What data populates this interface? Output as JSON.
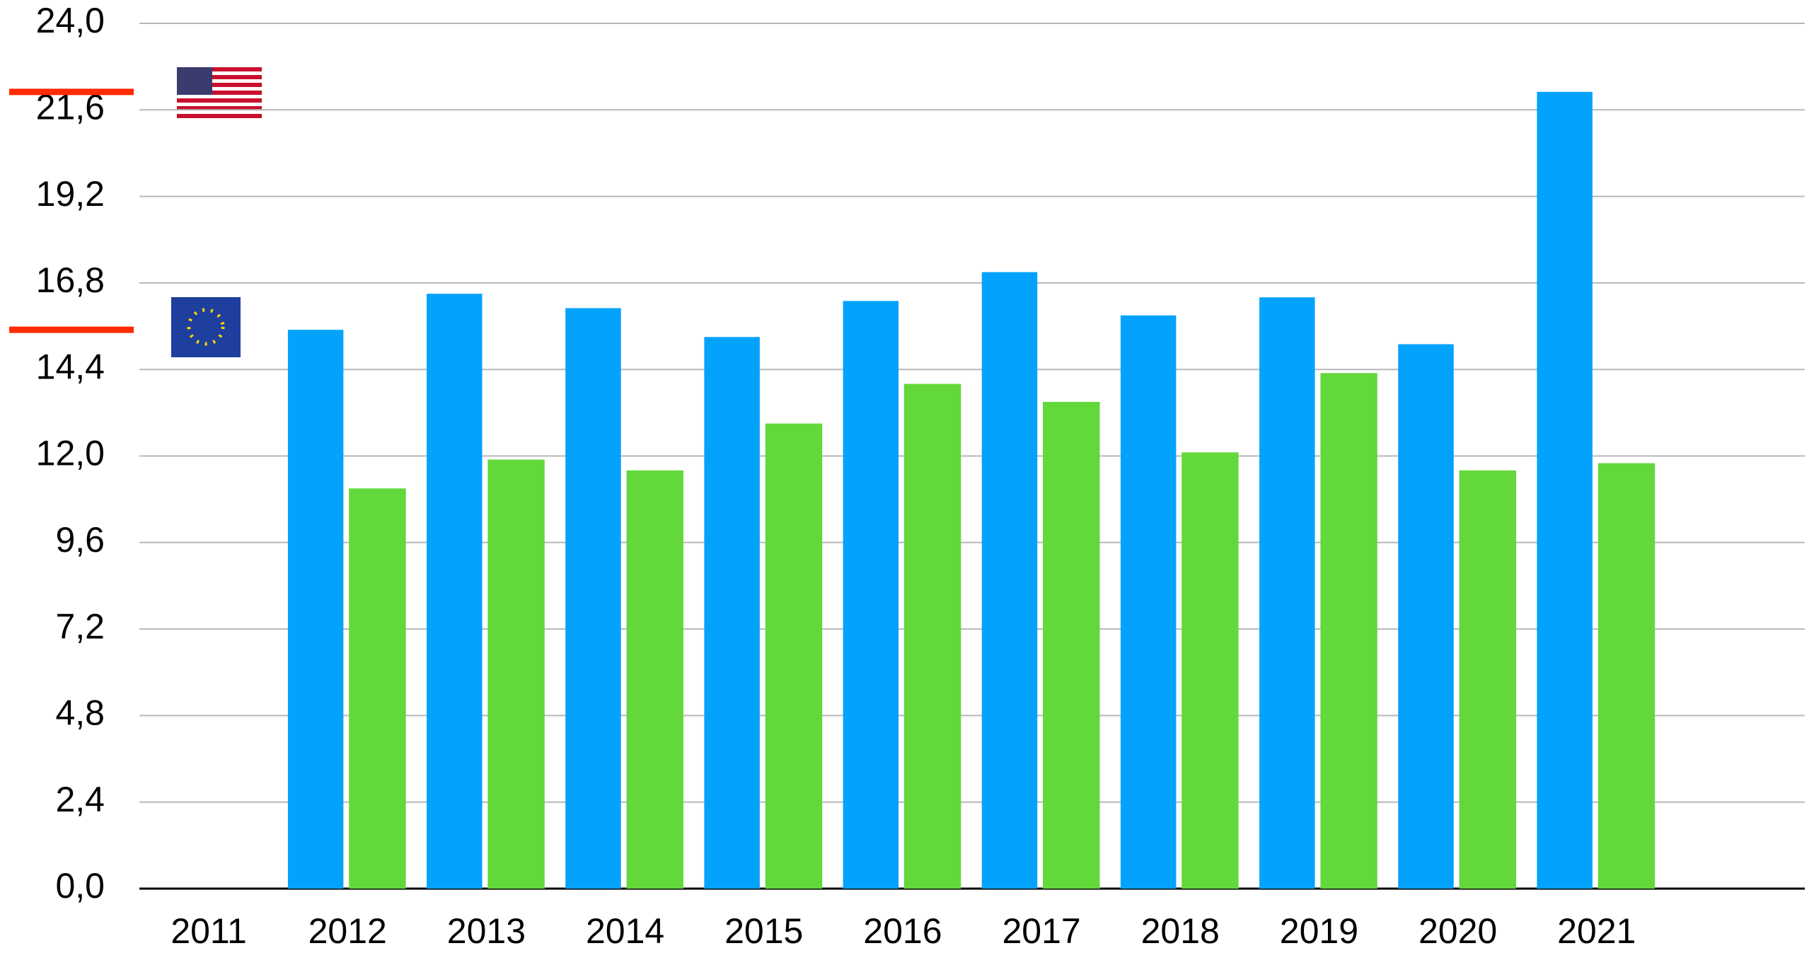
{
  "chart_data": {
    "type": "bar",
    "categories": [
      "2011",
      "2012",
      "2013",
      "2014",
      "2015",
      "2016",
      "2017",
      "2018",
      "2019",
      "2020",
      "2021",
      null
    ],
    "series": [
      {
        "color": "#03a2fd",
        "values": [
          null,
          15.5,
          16.5,
          16.1,
          15.3,
          16.3,
          17.1,
          15.9,
          16.4,
          15.1,
          22.1,
          null
        ]
      },
      {
        "color": "#62d83a",
        "values": [
          null,
          11.1,
          11.9,
          11.6,
          12.9,
          14.0,
          13.5,
          12.1,
          14.3,
          11.6,
          11.8,
          null
        ]
      }
    ],
    "ylim": [
      0,
      24
    ],
    "yticks": [
      {
        "value": 0,
        "label": "0,0"
      },
      {
        "value": 2.4,
        "label": "2,4"
      },
      {
        "value": 4.8,
        "label": "4,8"
      },
      {
        "value": 7.2,
        "label": "7,2"
      },
      {
        "value": 9.6,
        "label": "9,6"
      },
      {
        "value": 12,
        "label": "12,0"
      },
      {
        "value": 14.4,
        "label": "14,4"
      },
      {
        "value": 16.8,
        "label": "16,8"
      },
      {
        "value": 19.2,
        "label": "19,2"
      },
      {
        "value": 21.6,
        "label": "21,6"
      },
      {
        "value": 24,
        "label": "24,0"
      }
    ],
    "grid": true,
    "markers": [
      {
        "value": 22.1,
        "color": "#ff2a00"
      },
      {
        "value": 15.5,
        "color": "#ff2a00"
      }
    ]
  }
}
